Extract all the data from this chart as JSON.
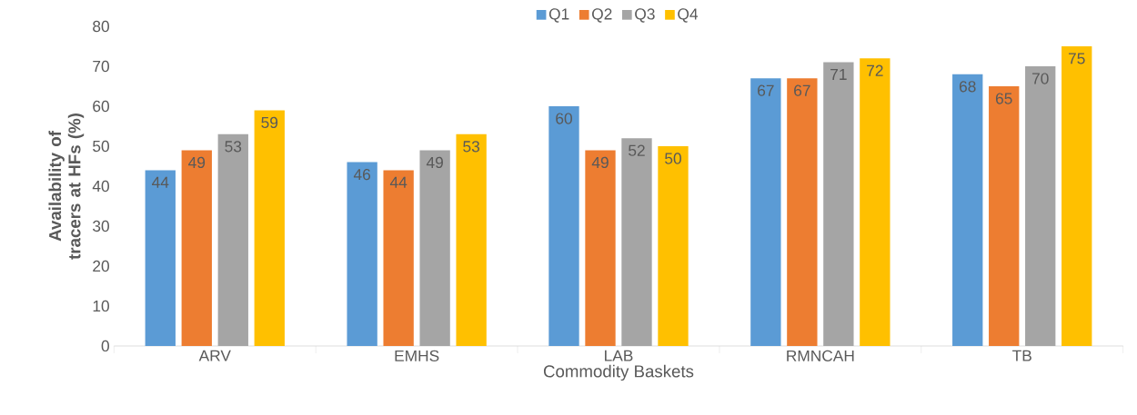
{
  "chart_data": {
    "type": "bar",
    "categories": [
      "ARV",
      "EMHS",
      "LAB",
      "RMNCAH",
      "TB"
    ],
    "series": [
      {
        "name": "Q1",
        "color": "#5b9bd5",
        "values": [
          44,
          46,
          60,
          67,
          68
        ]
      },
      {
        "name": "Q2",
        "color": "#ed7d31",
        "values": [
          49,
          44,
          49,
          67,
          65
        ]
      },
      {
        "name": "Q3",
        "color": "#a5a5a5",
        "values": [
          53,
          49,
          52,
          71,
          70
        ]
      },
      {
        "name": "Q4",
        "color": "#ffc000",
        "values": [
          59,
          53,
          50,
          72,
          75
        ]
      }
    ],
    "xlabel": "Commodity Baskets",
    "ylabel": "Availability of tracers at HFs (%)",
    "ylim": [
      0,
      80
    ],
    "yticks": [
      0,
      10,
      20,
      30,
      40,
      50,
      60,
      70,
      80
    ],
    "data_labels": true,
    "legend": "top"
  }
}
